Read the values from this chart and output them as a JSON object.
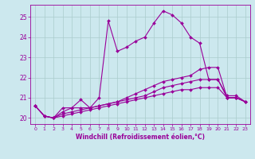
{
  "xlabel": "Windchill (Refroidissement éolien,°C)",
  "bg_color": "#cce8ee",
  "line_color": "#990099",
  "grid_color": "#aacccc",
  "xlim": [
    -0.5,
    23.5
  ],
  "ylim": [
    19.7,
    25.6
  ],
  "xticks": [
    0,
    1,
    2,
    3,
    4,
    5,
    6,
    7,
    8,
    9,
    10,
    11,
    12,
    13,
    14,
    15,
    16,
    17,
    18,
    19,
    20,
    21,
    22,
    23
  ],
  "yticks": [
    20,
    21,
    22,
    23,
    24,
    25
  ],
  "lines": [
    [
      20.6,
      20.1,
      20.0,
      20.5,
      20.5,
      20.9,
      20.5,
      21.0,
      24.8,
      23.3,
      23.5,
      23.8,
      24.0,
      24.7,
      25.3,
      25.1,
      24.7,
      24.0,
      23.7,
      21.9,
      21.9,
      21.1,
      21.1,
      20.8
    ],
    [
      20.6,
      20.1,
      20.0,
      20.3,
      20.5,
      20.5,
      20.5,
      20.6,
      20.7,
      20.8,
      21.0,
      21.2,
      21.4,
      21.6,
      21.8,
      21.9,
      22.0,
      22.1,
      22.4,
      22.5,
      22.5,
      21.0,
      21.0,
      20.8
    ],
    [
      20.6,
      20.1,
      20.0,
      20.2,
      20.3,
      20.4,
      20.5,
      20.6,
      20.7,
      20.8,
      20.9,
      21.0,
      21.1,
      21.3,
      21.5,
      21.6,
      21.7,
      21.8,
      21.9,
      21.9,
      21.9,
      21.0,
      21.0,
      20.8
    ],
    [
      20.6,
      20.1,
      20.0,
      20.1,
      20.2,
      20.3,
      20.4,
      20.5,
      20.6,
      20.7,
      20.8,
      20.9,
      21.0,
      21.1,
      21.2,
      21.3,
      21.4,
      21.4,
      21.5,
      21.5,
      21.5,
      21.0,
      21.0,
      20.8
    ]
  ]
}
